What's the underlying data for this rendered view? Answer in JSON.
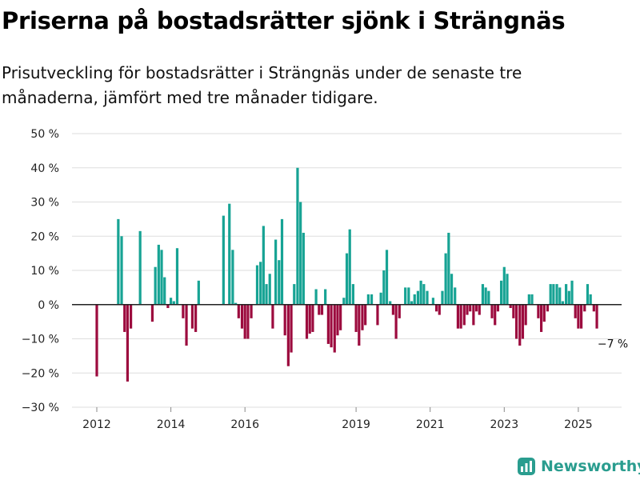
{
  "chart_data": {
    "type": "bar",
    "title": "Priserna på bostadsrätter sjönk i Strängnäs",
    "subtitle": "Prisutveckling för bostadsrätter i Strängnäs under de senaste tre månaderna, jämfört med tre månader tidigare.",
    "xlabel": "",
    "ylabel": "",
    "ylim": [
      -30,
      50
    ],
    "y_ticks": [
      -30,
      -20,
      -10,
      0,
      10,
      20,
      30,
      40,
      50
    ],
    "y_tick_labels": [
      "−30 %",
      "−20 %",
      "−10 %",
      "0 %",
      "10 %",
      "20 %",
      "30 %",
      "40 %",
      "50 %"
    ],
    "x_ticks": [
      2012,
      2014,
      2016,
      2019,
      2021,
      2023,
      2025
    ],
    "x_tick_labels": [
      "2012",
      "2014",
      "2016",
      "2019",
      "2021",
      "2023",
      "2025"
    ],
    "xlim": [
      2011.4,
      2026.2
    ],
    "grid": "horizontal",
    "positive_color": "#17a394",
    "negative_color": "#9c0b3e",
    "bars": [
      {
        "x": 2012.0,
        "value": -21
      },
      {
        "x": 2012.58,
        "value": 25
      },
      {
        "x": 2012.67,
        "value": 20
      },
      {
        "x": 2012.75,
        "value": -8
      },
      {
        "x": 2012.83,
        "value": -22.5
      },
      {
        "x": 2012.92,
        "value": -7
      },
      {
        "x": 2013.17,
        "value": 21.5
      },
      {
        "x": 2013.5,
        "value": -5
      },
      {
        "x": 2013.58,
        "value": 11
      },
      {
        "x": 2013.67,
        "value": 17.5
      },
      {
        "x": 2013.75,
        "value": 16
      },
      {
        "x": 2013.83,
        "value": 8
      },
      {
        "x": 2013.92,
        "value": -1
      },
      {
        "x": 2014.0,
        "value": 2
      },
      {
        "x": 2014.08,
        "value": 1
      },
      {
        "x": 2014.17,
        "value": 16.5
      },
      {
        "x": 2014.33,
        "value": -4
      },
      {
        "x": 2014.42,
        "value": -12
      },
      {
        "x": 2014.58,
        "value": -7
      },
      {
        "x": 2014.67,
        "value": -8
      },
      {
        "x": 2014.75,
        "value": 7
      },
      {
        "x": 2015.42,
        "value": 26
      },
      {
        "x": 2015.58,
        "value": 29.5
      },
      {
        "x": 2015.67,
        "value": 16
      },
      {
        "x": 2015.75,
        "value": 0.5
      },
      {
        "x": 2015.83,
        "value": -4
      },
      {
        "x": 2015.92,
        "value": -7
      },
      {
        "x": 2016.0,
        "value": -10
      },
      {
        "x": 2016.08,
        "value": -10
      },
      {
        "x": 2016.17,
        "value": -4
      },
      {
        "x": 2016.33,
        "value": 11.5
      },
      {
        "x": 2016.42,
        "value": 12.5
      },
      {
        "x": 2016.5,
        "value": 23
      },
      {
        "x": 2016.58,
        "value": 6
      },
      {
        "x": 2016.67,
        "value": 9
      },
      {
        "x": 2016.75,
        "value": -7
      },
      {
        "x": 2016.83,
        "value": 19
      },
      {
        "x": 2016.92,
        "value": 13
      },
      {
        "x": 2017.0,
        "value": 25
      },
      {
        "x": 2017.08,
        "value": -9
      },
      {
        "x": 2017.17,
        "value": -18
      },
      {
        "x": 2017.25,
        "value": -14
      },
      {
        "x": 2017.33,
        "value": 6
      },
      {
        "x": 2017.42,
        "value": 40
      },
      {
        "x": 2017.5,
        "value": 30
      },
      {
        "x": 2017.58,
        "value": 21
      },
      {
        "x": 2017.67,
        "value": -10
      },
      {
        "x": 2017.75,
        "value": -8.5
      },
      {
        "x": 2017.83,
        "value": -8
      },
      {
        "x": 2017.92,
        "value": 4.5
      },
      {
        "x": 2018.0,
        "value": -3
      },
      {
        "x": 2018.08,
        "value": -3
      },
      {
        "x": 2018.17,
        "value": 4.5
      },
      {
        "x": 2018.25,
        "value": -11.5
      },
      {
        "x": 2018.33,
        "value": -12.5
      },
      {
        "x": 2018.42,
        "value": -14
      },
      {
        "x": 2018.5,
        "value": -9
      },
      {
        "x": 2018.58,
        "value": -7.5
      },
      {
        "x": 2018.67,
        "value": 2
      },
      {
        "x": 2018.75,
        "value": 15
      },
      {
        "x": 2018.83,
        "value": 22
      },
      {
        "x": 2018.92,
        "value": 6
      },
      {
        "x": 2019.0,
        "value": -8
      },
      {
        "x": 2019.08,
        "value": -12
      },
      {
        "x": 2019.17,
        "value": -7.5
      },
      {
        "x": 2019.25,
        "value": -6
      },
      {
        "x": 2019.33,
        "value": 3
      },
      {
        "x": 2019.42,
        "value": 3
      },
      {
        "x": 2019.58,
        "value": -6
      },
      {
        "x": 2019.67,
        "value": 3.5
      },
      {
        "x": 2019.75,
        "value": 10
      },
      {
        "x": 2019.83,
        "value": 16
      },
      {
        "x": 2019.92,
        "value": 1
      },
      {
        "x": 2020.0,
        "value": -3
      },
      {
        "x": 2020.08,
        "value": -10
      },
      {
        "x": 2020.17,
        "value": -4
      },
      {
        "x": 2020.33,
        "value": 5
      },
      {
        "x": 2020.42,
        "value": 5
      },
      {
        "x": 2020.5,
        "value": 1
      },
      {
        "x": 2020.58,
        "value": 3
      },
      {
        "x": 2020.67,
        "value": 4
      },
      {
        "x": 2020.75,
        "value": 7
      },
      {
        "x": 2020.83,
        "value": 6
      },
      {
        "x": 2020.92,
        "value": 4
      },
      {
        "x": 2021.08,
        "value": 2
      },
      {
        "x": 2021.17,
        "value": -2
      },
      {
        "x": 2021.25,
        "value": -3
      },
      {
        "x": 2021.33,
        "value": 4
      },
      {
        "x": 2021.42,
        "value": 15
      },
      {
        "x": 2021.5,
        "value": 21
      },
      {
        "x": 2021.58,
        "value": 9
      },
      {
        "x": 2021.67,
        "value": 5
      },
      {
        "x": 2021.75,
        "value": -7
      },
      {
        "x": 2021.83,
        "value": -7
      },
      {
        "x": 2021.92,
        "value": -6
      },
      {
        "x": 2022.0,
        "value": -3
      },
      {
        "x": 2022.08,
        "value": -2
      },
      {
        "x": 2022.17,
        "value": -6
      },
      {
        "x": 2022.25,
        "value": -2
      },
      {
        "x": 2022.33,
        "value": -3
      },
      {
        "x": 2022.42,
        "value": 6
      },
      {
        "x": 2022.5,
        "value": 5
      },
      {
        "x": 2022.58,
        "value": 4
      },
      {
        "x": 2022.67,
        "value": -4
      },
      {
        "x": 2022.75,
        "value": -6
      },
      {
        "x": 2022.83,
        "value": -2
      },
      {
        "x": 2022.92,
        "value": 7
      },
      {
        "x": 2023.0,
        "value": 11
      },
      {
        "x": 2023.08,
        "value": 9
      },
      {
        "x": 2023.17,
        "value": -1
      },
      {
        "x": 2023.25,
        "value": -4
      },
      {
        "x": 2023.33,
        "value": -10
      },
      {
        "x": 2023.42,
        "value": -12
      },
      {
        "x": 2023.5,
        "value": -10
      },
      {
        "x": 2023.58,
        "value": -6
      },
      {
        "x": 2023.67,
        "value": 3
      },
      {
        "x": 2023.75,
        "value": 3
      },
      {
        "x": 2023.92,
        "value": -4
      },
      {
        "x": 2024.0,
        "value": -8
      },
      {
        "x": 2024.08,
        "value": -5
      },
      {
        "x": 2024.17,
        "value": -2
      },
      {
        "x": 2024.25,
        "value": 6
      },
      {
        "x": 2024.33,
        "value": 6
      },
      {
        "x": 2024.42,
        "value": 6
      },
      {
        "x": 2024.5,
        "value": 5
      },
      {
        "x": 2024.58,
        "value": 1
      },
      {
        "x": 2024.67,
        "value": 6
      },
      {
        "x": 2024.75,
        "value": 4
      },
      {
        "x": 2024.83,
        "value": 7
      },
      {
        "x": 2024.92,
        "value": -4
      },
      {
        "x": 2025.0,
        "value": -7
      },
      {
        "x": 2025.08,
        "value": -7
      },
      {
        "x": 2025.17,
        "value": -2
      },
      {
        "x": 2025.25,
        "value": 6
      },
      {
        "x": 2025.33,
        "value": 3
      },
      {
        "x": 2025.42,
        "value": -2
      },
      {
        "x": 2025.5,
        "value": -7
      }
    ],
    "annotations": [
      {
        "x": 2025.5,
        "value": -7,
        "text": "−7 %"
      }
    ]
  },
  "brand": {
    "name": "Newsworthy",
    "color": "#2a9d8f",
    "icon": "newsworthy-logo-icon"
  }
}
